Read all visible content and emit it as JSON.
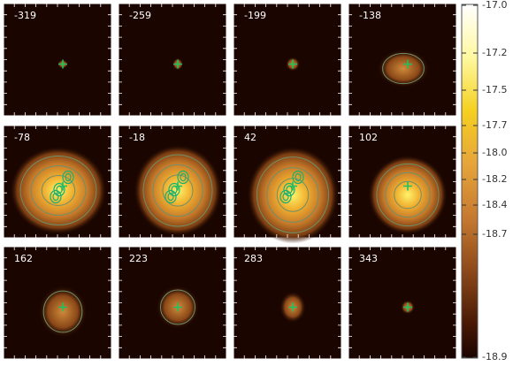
{
  "panels": [
    {
      "label": "-319"
    },
    {
      "label": "-259"
    },
    {
      "label": "-199"
    },
    {
      "label": "-138"
    },
    {
      "label": "-78"
    },
    {
      "label": "-18"
    },
    {
      "label": "42"
    },
    {
      "label": "102"
    },
    {
      "label": "162"
    },
    {
      "label": "223"
    },
    {
      "label": "283"
    },
    {
      "label": "343"
    }
  ],
  "colorbar": {
    "tick_labels": [
      "-17.0",
      "-17.2",
      "-17.5",
      "-17.7",
      "-18.0",
      "-18.2",
      "-18.4",
      "-18.7",
      "-18.9"
    ]
  }
}
